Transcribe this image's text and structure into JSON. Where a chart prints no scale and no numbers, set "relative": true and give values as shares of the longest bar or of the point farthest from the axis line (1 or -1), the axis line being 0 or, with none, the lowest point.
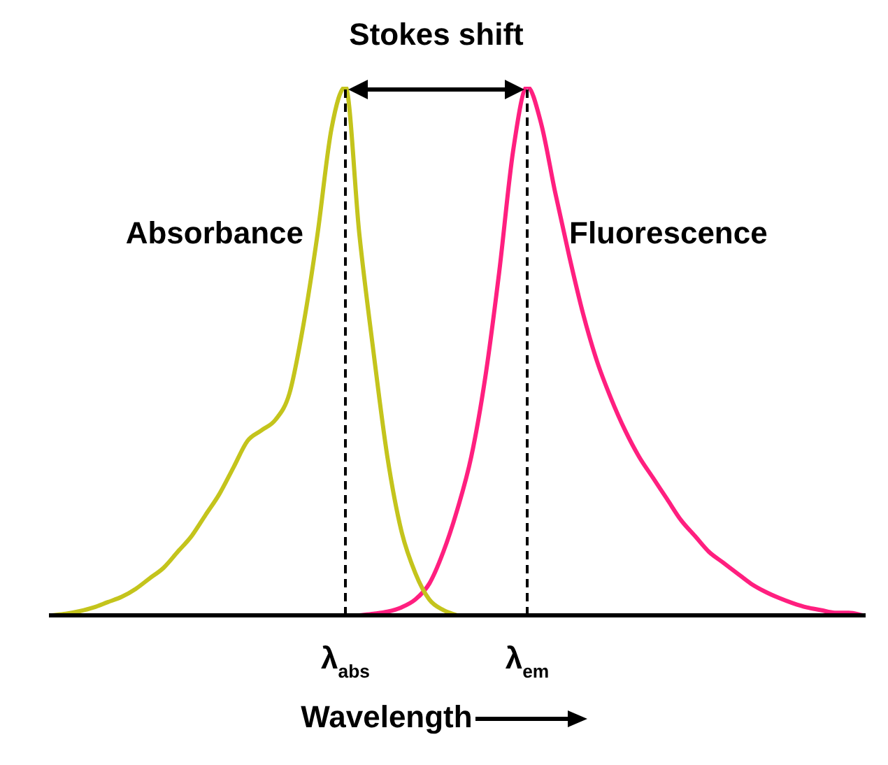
{
  "chart_data": {
    "type": "line",
    "relative": true,
    "xlabel": "Wavelength",
    "categories": [
      null,
      null,
      null,
      null,
      null,
      null,
      null,
      null,
      null,
      null,
      null,
      null,
      null,
      null,
      null,
      null,
      null,
      null,
      null,
      null,
      null,
      "λ$_{abs}$",
      null,
      null,
      null,
      null,
      null,
      null,
      null,
      null,
      null,
      null,
      null,
      null,
      "λ$_{em}$",
      null,
      null,
      null,
      null,
      null,
      null,
      null,
      null,
      null,
      null,
      null,
      null,
      null,
      null,
      null,
      null,
      null,
      null,
      null,
      null,
      null,
      null,
      null,
      null
    ],
    "series": [
      {
        "name": "Absorbance",
        "color": "#c4c41c",
        "values": [
          0,
          0.003,
          0.008,
          0.015,
          0.025,
          0.035,
          0.05,
          0.07,
          0.09,
          0.12,
          0.15,
          0.19,
          0.23,
          0.28,
          0.33,
          0.35,
          0.37,
          0.42,
          0.55,
          0.72,
          0.92,
          1,
          0.72,
          0.5,
          0.3,
          0.16,
          0.08,
          0.03,
          0.01,
          0,
          null,
          null,
          null,
          null,
          null,
          null,
          null,
          null,
          null,
          null,
          null,
          null,
          null,
          null,
          null,
          null,
          null,
          null,
          null,
          null,
          null,
          null,
          null,
          null,
          null,
          null,
          null,
          null,
          null
        ]
      },
      {
        "name": "Fluorescence",
        "color": "#ff1f7f",
        "values": [
          null,
          null,
          null,
          null,
          null,
          null,
          null,
          null,
          null,
          null,
          null,
          null,
          null,
          null,
          null,
          null,
          null,
          null,
          null,
          null,
          null,
          null,
          0,
          0.003,
          0.007,
          0.015,
          0.03,
          0.06,
          0.12,
          0.2,
          0.3,
          0.45,
          0.65,
          0.88,
          1,
          0.93,
          0.8,
          0.68,
          0.57,
          0.48,
          0.41,
          0.35,
          0.3,
          0.26,
          0.22,
          0.18,
          0.15,
          0.12,
          0.1,
          0.08,
          0.06,
          0.045,
          0.033,
          0.023,
          0.015,
          0.01,
          0.005,
          0.005,
          0
        ]
      }
    ],
    "ref_lines": [
      {
        "axis": "x",
        "value": "λ$_{abs}$",
        "line_style": "dashed",
        "color": "#000000"
      },
      {
        "axis": "x",
        "value": "λ$_{em}$",
        "line_style": "dashed",
        "color": "#000000"
      }
    ],
    "annotations": [
      "Stokes shift"
    ],
    "legend": false,
    "marker": "none",
    "line_style": "solid"
  }
}
